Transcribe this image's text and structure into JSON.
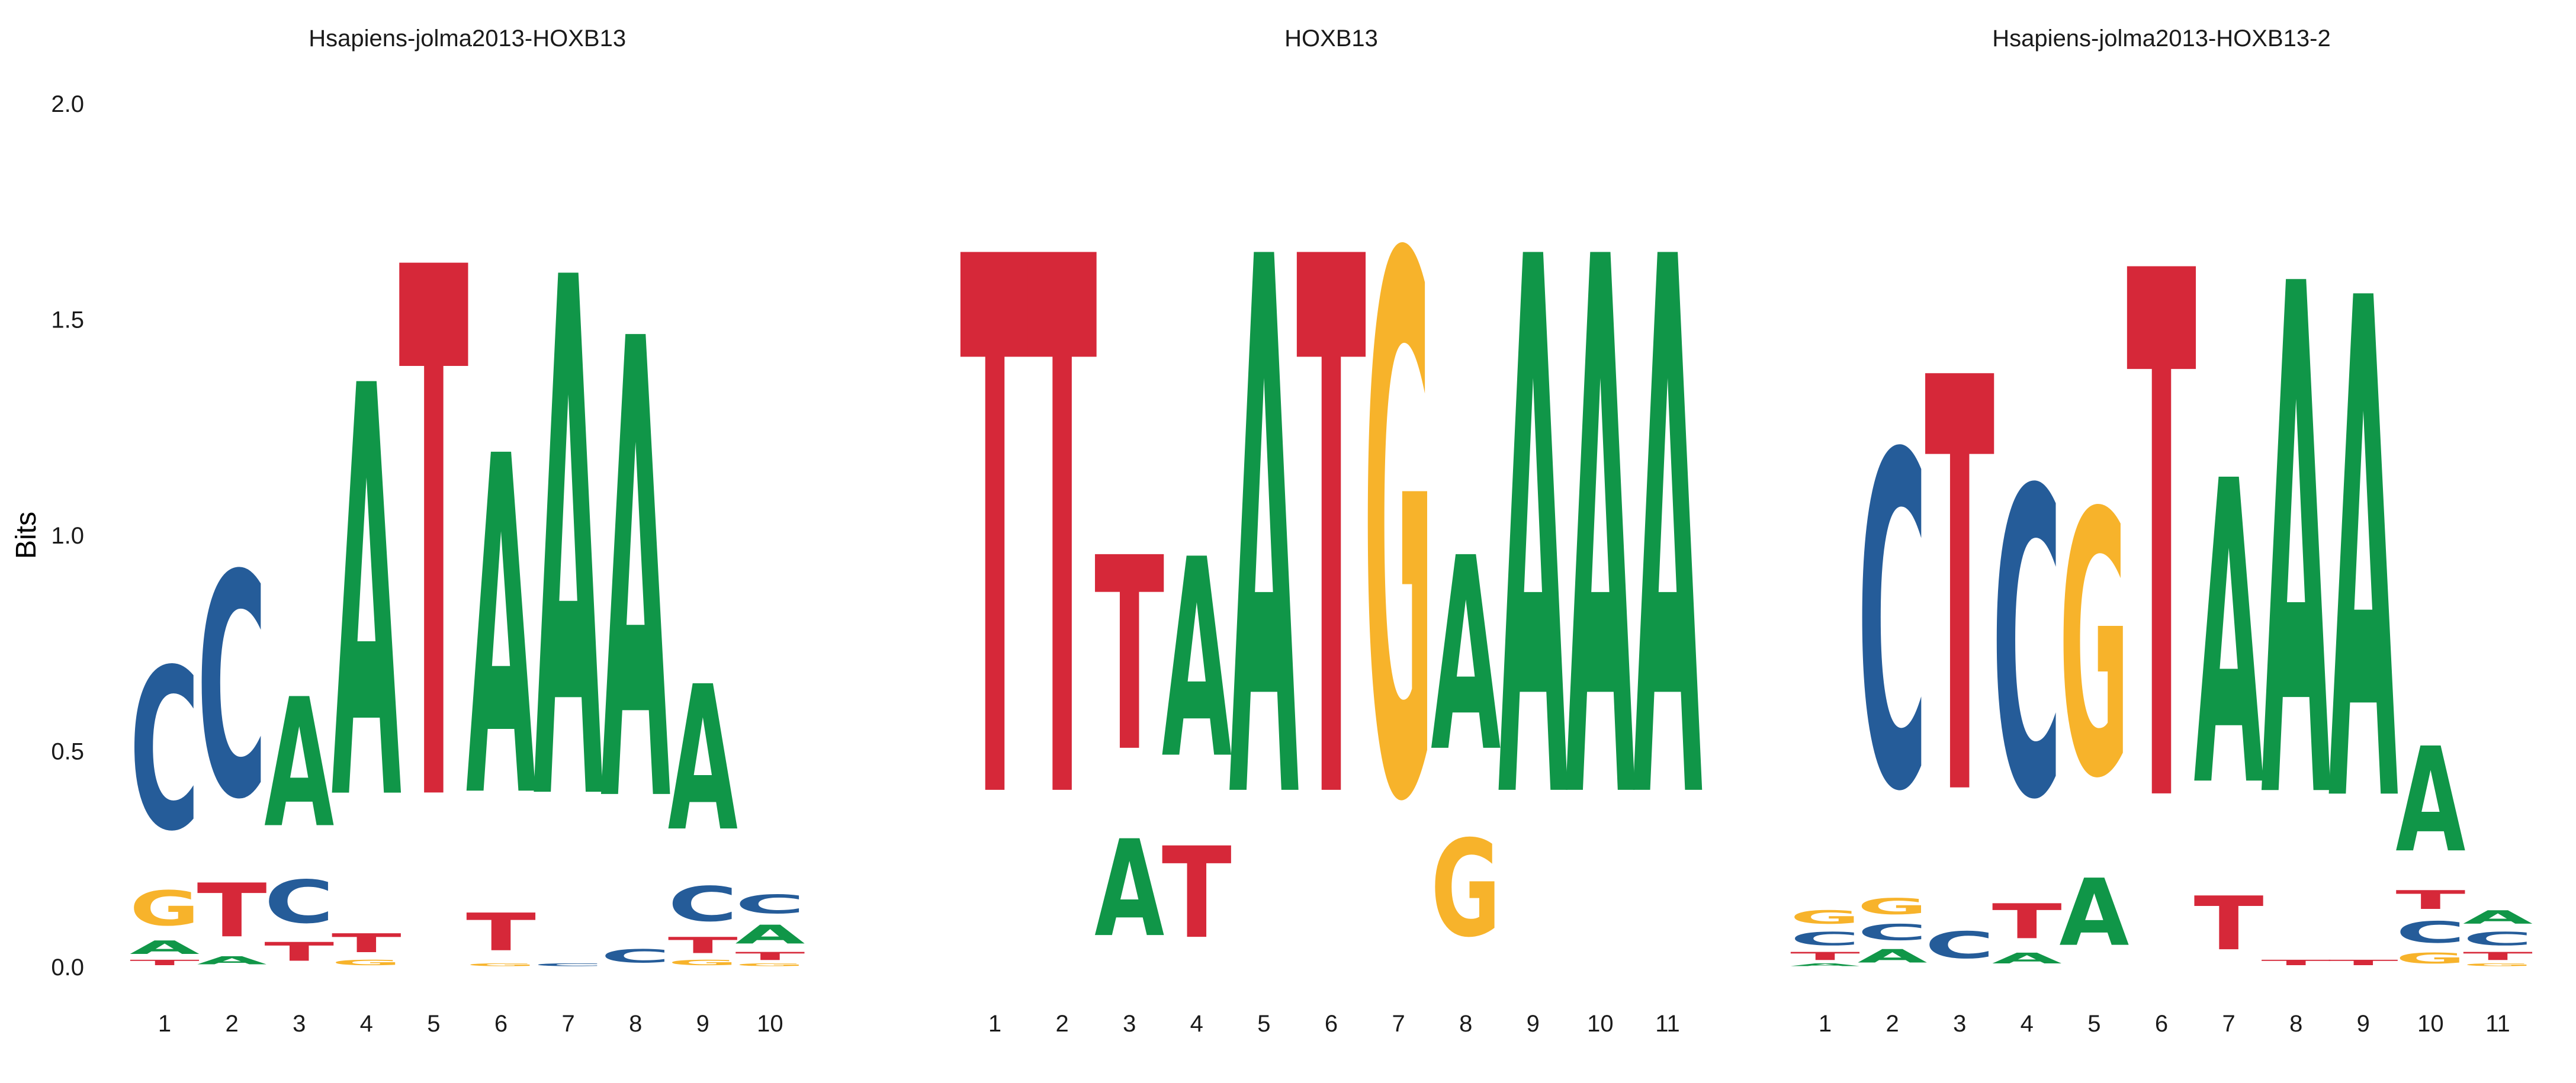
{
  "chart_data": {
    "type": "sequence-logo",
    "ylabel": "Bits",
    "ylim": [
      0,
      2
    ],
    "yticks": [
      "0.0",
      "0.5",
      "1.0",
      "1.5",
      "2.0"
    ],
    "letter_colors": {
      "A": "#109648",
      "C": "#255C99",
      "G": "#F7B32B",
      "T": "#D62839"
    },
    "panels": [
      {
        "title": "Hsapiens-jolma2013-HOXB13",
        "positions": [
          "1",
          "2",
          "3",
          "4",
          "5",
          "6",
          "7",
          "8",
          "9",
          "10"
        ],
        "columns": [
          [
            [
              "T",
              0.02
            ],
            [
              "A",
              0.05
            ],
            [
              "G",
              0.13
            ],
            [
              "C",
              0.6
            ]
          ],
          [
            [
              "A",
              0.03
            ],
            [
              "T",
              0.2
            ],
            [
              "C",
              0.83
            ]
          ],
          [
            [
              "T",
              0.07
            ],
            [
              "C",
              0.16
            ],
            [
              "A",
              0.48
            ]
          ],
          [
            [
              "G",
              0.02
            ],
            [
              "T",
              0.07
            ],
            [
              "A",
              1.53
            ]
          ],
          [
            [
              "T",
              1.97
            ]
          ],
          [
            [
              "G",
              0.01
            ],
            [
              "T",
              0.14
            ],
            [
              "A",
              1.26
            ]
          ],
          [
            [
              "C",
              0.01
            ],
            [
              "A",
              1.93
            ]
          ],
          [
            [
              "C",
              0.05
            ],
            [
              "A",
              1.71
            ]
          ],
          [
            [
              "G",
              0.02
            ],
            [
              "T",
              0.06
            ],
            [
              "C",
              0.13
            ],
            [
              "A",
              0.54
            ]
          ],
          [
            [
              "G",
              0.01
            ],
            [
              "T",
              0.03
            ],
            [
              "A",
              0.07
            ],
            [
              "C",
              0.07
            ]
          ]
        ]
      },
      {
        "title": "HOXB13",
        "positions": [
          "1",
          "2",
          "3",
          "4",
          "5",
          "6",
          "7",
          "8",
          "9",
          "10",
          "11"
        ],
        "columns": [
          [
            [
              "T",
              2.0
            ]
          ],
          [
            [
              "T",
              2.0
            ]
          ],
          [
            [
              "A",
              0.36
            ],
            [
              "T",
              0.72
            ]
          ],
          [
            [
              "T",
              0.34
            ],
            [
              "A",
              0.74
            ]
          ],
          [
            [
              "A",
              2.0
            ]
          ],
          [
            [
              "T",
              2.0
            ]
          ],
          [
            [
              "G",
              2.0
            ]
          ],
          [
            [
              "G",
              0.36
            ],
            [
              "A",
              0.72
            ]
          ],
          [
            [
              "A",
              2.0
            ]
          ],
          [
            [
              "A",
              2.0
            ]
          ],
          [
            [
              "A",
              2.0
            ]
          ]
        ]
      },
      {
        "title": "Hsapiens-jolma2013-HOXB13-2",
        "positions": [
          "1",
          "2",
          "3",
          "4",
          "5",
          "6",
          "7",
          "8",
          "9",
          "10",
          "11"
        ],
        "columns": [
          [
            [
              "A",
              0.01
            ],
            [
              "T",
              0.03
            ],
            [
              "C",
              0.05
            ],
            [
              "G",
              0.05
            ]
          ],
          [
            [
              "A",
              0.05
            ],
            [
              "C",
              0.06
            ],
            [
              "G",
              0.06
            ],
            [
              "C",
              1.24
            ]
          ],
          [
            [
              "C",
              0.1
            ],
            [
              "T",
              1.54
            ]
          ],
          [
            [
              "A",
              0.04
            ],
            [
              "T",
              0.13
            ],
            [
              "C",
              1.14
            ]
          ],
          [
            [
              "A",
              0.25
            ],
            [
              "G",
              0.98
            ]
          ],
          [
            [
              "T",
              1.96
            ]
          ],
          [
            [
              "T",
              0.2
            ],
            [
              "A",
              1.13
            ]
          ],
          [
            [
              "T",
              0.02
            ],
            [
              "A",
              1.9
            ]
          ],
          [
            [
              "T",
              0.02
            ],
            [
              "A",
              1.86
            ]
          ],
          [
            [
              "G",
              0.04
            ],
            [
              "C",
              0.08
            ],
            [
              "T",
              0.07
            ],
            [
              "A",
              0.39
            ]
          ],
          [
            [
              "G",
              0.01
            ],
            [
              "T",
              0.03
            ],
            [
              "C",
              0.05
            ],
            [
              "A",
              0.05
            ]
          ]
        ]
      }
    ]
  }
}
